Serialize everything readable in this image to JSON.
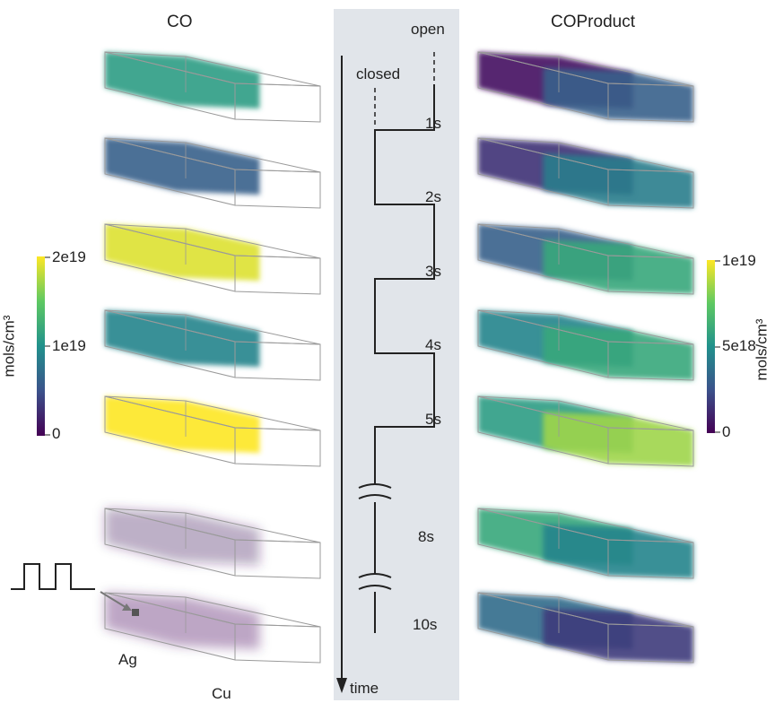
{
  "left": {
    "title": "CO",
    "colorbar": {
      "unit": "mols/cm³",
      "ticks": [
        "2e19",
        "1e19",
        "0"
      ]
    },
    "regions": {
      "left": "Ag",
      "right": "Cu"
    },
    "boxes": [
      {
        "level": 0.55,
        "region": "left"
      },
      {
        "level": 0.3,
        "region": "left"
      },
      {
        "level": 0.95,
        "region": "left"
      },
      {
        "level": 0.45,
        "region": "left"
      },
      {
        "level": 1.0,
        "region": "left"
      },
      {
        "level": 0.05,
        "region": "left",
        "faint": true
      },
      {
        "level": 0.02,
        "region": "left",
        "faint": true
      }
    ]
  },
  "right": {
    "title": "COProduct",
    "colorbar": {
      "unit": "mols/cm³",
      "ticks": [
        "1e19",
        "5e18",
        "0"
      ]
    },
    "boxes": [
      {
        "levels": [
          0.05,
          0.3
        ]
      },
      {
        "levels": [
          0.15,
          0.42
        ]
      },
      {
        "levels": [
          0.3,
          0.6
        ]
      },
      {
        "levels": [
          0.45,
          0.6
        ]
      },
      {
        "levels": [
          0.55,
          0.85
        ]
      },
      {
        "levels": [
          0.6,
          0.45
        ]
      },
      {
        "levels": [
          0.35,
          0.18
        ]
      }
    ]
  },
  "center": {
    "states": {
      "open": "open",
      "closed": "closed"
    },
    "axis_label": "time",
    "times": [
      "1s",
      "2s",
      "3s",
      "4s",
      "5s",
      "8s",
      "10s"
    ]
  },
  "colors": {
    "viridis": [
      "#440154",
      "#3b528b",
      "#21918c",
      "#5ec962",
      "#fde725"
    ],
    "panel": "#e1e5ea",
    "line": "#222222"
  }
}
